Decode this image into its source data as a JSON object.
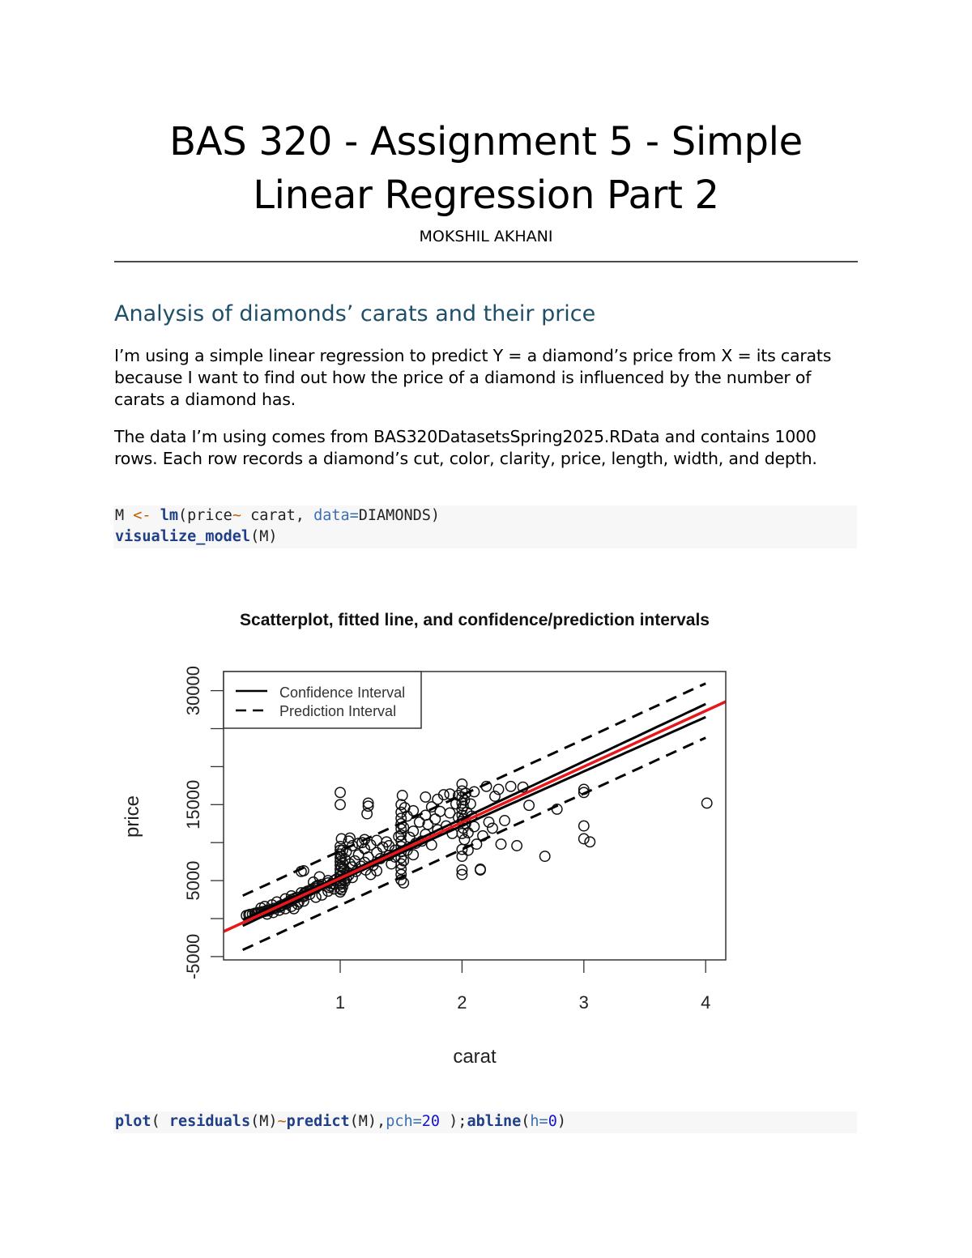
{
  "document": {
    "title": "BAS 320 - Assignment 5 - Simple Linear Regression Part 2",
    "title_line1": "BAS 320 - Assignment 5 - Simple",
    "title_line2": "Linear Regression Part 2",
    "author": "MOKSHIL AKHANI",
    "section_heading": "Analysis of diamonds’ carats and their price",
    "paragraph1": "I’m using a simple linear regression to predict Y = a diamond’s price from X = its carats because I want to find out how the price of a diamond is influenced by the number of carats a diamond has.",
    "paragraph2": "The data I’m using comes from BAS320DatasetsSpring2025.RData and contains 1000 rows. Each row records a diamond’s cut, color, clarity, price, length, width, and depth.",
    "code_block1": {
      "line1": {
        "t1": "M ",
        "t2": "<-",
        "t3": " ",
        "t4": "lm",
        "t5": "(price",
        "t6": "~",
        "t7": " carat, ",
        "t8": "data=",
        "t9": "DIAMONDS)"
      },
      "line2": {
        "t1": "visualize_model",
        "t2": "(M)"
      }
    },
    "code_block2": {
      "t1": "plot",
      "t2": "( ",
      "t3": "residuals",
      "t4": "(M)",
      "t5": "~",
      "t6": "predict",
      "t7": "(M),",
      "t8": "pch=",
      "t9": "20",
      "t10": " );",
      "t11": "abline",
      "t12": "(",
      "t13": "h=",
      "t14": "0",
      "t15": ")"
    }
  },
  "colors": {
    "heading": "#1f4e68",
    "fitted_line": "#e8171b",
    "code_bg": "#f7f7f7",
    "keyword": "#1f3f86",
    "operator": "#c05d00"
  },
  "chart_data": {
    "type": "scatter",
    "title": "Scatterplot, fitted line, and confidence/prediction intervals",
    "xlabel": "carat",
    "ylabel": "price",
    "xlim": [
      0.0,
      4.2
    ],
    "ylim": [
      -5000,
      33000
    ],
    "x_ticks": [
      1,
      2,
      3,
      4
    ],
    "y_ticks": [
      -5000,
      0,
      5000,
      10000,
      15000,
      20000,
      25000,
      30000
    ],
    "y_tick_labels": [
      "-5000",
      "",
      "5000",
      "",
      "15000",
      "",
      "",
      "30000"
    ],
    "grid": false,
    "legend": {
      "position": "top-left",
      "entries": [
        {
          "label": "Confidence Interval",
          "style": "solid"
        },
        {
          "label": "Prediction Interval",
          "style": "dashed"
        }
      ]
    },
    "fitted_line": {
      "intercept": -2020,
      "slope": 7350,
      "color": "#e8171b"
    },
    "confidence_halfwidth_at_x4": 900,
    "prediction_halfwidth": 3570,
    "series": [
      {
        "name": "observations",
        "marker": "open-circle",
        "points": [
          [
            0.23,
            400
          ],
          [
            0.25,
            500
          ],
          [
            0.26,
            550
          ],
          [
            0.28,
            600
          ],
          [
            0.3,
            650
          ],
          [
            0.3,
            700
          ],
          [
            0.31,
            720
          ],
          [
            0.32,
            780
          ],
          [
            0.33,
            800
          ],
          [
            0.35,
            850
          ],
          [
            0.36,
            900
          ],
          [
            0.38,
            950
          ],
          [
            0.4,
            1000
          ],
          [
            0.4,
            1100
          ],
          [
            0.41,
            1050
          ],
          [
            0.42,
            1150
          ],
          [
            0.43,
            1200
          ],
          [
            0.45,
            1300
          ],
          [
            0.46,
            1350
          ],
          [
            0.5,
            1500
          ],
          [
            0.5,
            1600
          ],
          [
            0.51,
            1700
          ],
          [
            0.52,
            1750
          ],
          [
            0.53,
            1800
          ],
          [
            0.55,
            1900
          ],
          [
            0.56,
            2000
          ],
          [
            0.57,
            2100
          ],
          [
            0.58,
            2200
          ],
          [
            0.6,
            2300
          ],
          [
            0.6,
            2500
          ],
          [
            0.62,
            2600
          ],
          [
            0.63,
            2700
          ],
          [
            0.65,
            2800
          ],
          [
            0.7,
            2900
          ],
          [
            0.7,
            3000
          ],
          [
            0.7,
            3200
          ],
          [
            0.71,
            3400
          ],
          [
            0.72,
            3500
          ],
          [
            0.73,
            3600
          ],
          [
            0.75,
            3700
          ],
          [
            0.76,
            3800
          ],
          [
            0.77,
            3900
          ],
          [
            0.8,
            4000
          ],
          [
            0.8,
            4200
          ],
          [
            0.81,
            4300
          ],
          [
            0.82,
            4400
          ],
          [
            0.85,
            4500
          ],
          [
            0.9,
            4700
          ],
          [
            0.9,
            5000
          ],
          [
            0.91,
            4100
          ],
          [
            0.92,
            4300
          ],
          [
            0.93,
            4600
          ],
          [
            0.95,
            5000
          ],
          [
            0.97,
            5200
          ],
          [
            0.35,
            1400
          ],
          [
            0.38,
            1600
          ],
          [
            0.44,
            1800
          ],
          [
            0.48,
            2200
          ],
          [
            0.55,
            2600
          ],
          [
            0.6,
            3000
          ],
          [
            0.62,
            1300
          ],
          [
            0.66,
            2200
          ],
          [
            0.68,
            3400
          ],
          [
            0.7,
            2300
          ],
          [
            0.75,
            3200
          ],
          [
            0.78,
            4800
          ],
          [
            0.83,
            5500
          ],
          [
            0.68,
            6200
          ],
          [
            0.7,
            6300
          ],
          [
            0.4,
            600
          ],
          [
            0.45,
            800
          ],
          [
            0.5,
            1100
          ],
          [
            0.55,
            1300
          ],
          [
            0.6,
            1600
          ],
          [
            0.65,
            1900
          ],
          [
            0.8,
            2800
          ],
          [
            0.85,
            3100
          ],
          [
            0.9,
            3600
          ],
          [
            0.95,
            3900
          ],
          [
            1.0,
            3500
          ],
          [
            1.0,
            4000
          ],
          [
            1.0,
            4500
          ],
          [
            1.0,
            5000
          ],
          [
            1.0,
            5500
          ],
          [
            1.0,
            6000
          ],
          [
            1.0,
            6500
          ],
          [
            1.0,
            7000
          ],
          [
            1.0,
            7500
          ],
          [
            1.0,
            8000
          ],
          [
            1.0,
            8500
          ],
          [
            1.0,
            9000
          ],
          [
            1.0,
            9500
          ],
          [
            1.01,
            10500
          ],
          [
            1.01,
            3800
          ],
          [
            1.01,
            4700
          ],
          [
            1.01,
            5600
          ],
          [
            1.01,
            6800
          ],
          [
            1.01,
            8200
          ],
          [
            1.02,
            4200
          ],
          [
            1.02,
            6000
          ],
          [
            1.02,
            7300
          ],
          [
            1.02,
            9000
          ],
          [
            1.03,
            5100
          ],
          [
            1.03,
            6600
          ],
          [
            1.04,
            4900
          ],
          [
            1.04,
            7800
          ],
          [
            1.05,
            5300
          ],
          [
            1.05,
            8800
          ],
          [
            1.06,
            6100
          ],
          [
            1.07,
            5700
          ],
          [
            1.07,
            10200
          ],
          [
            1.08,
            7200
          ],
          [
            1.1,
            5400
          ],
          [
            1.1,
            6800
          ],
          [
            1.1,
            9600
          ],
          [
            1.12,
            7600
          ],
          [
            1.13,
            6200
          ],
          [
            1.15,
            8400
          ],
          [
            1.15,
            9900
          ],
          [
            1.17,
            6900
          ],
          [
            1.2,
            7400
          ],
          [
            1.2,
            9200
          ],
          [
            1.2,
            10400
          ],
          [
            1.21,
            6400
          ],
          [
            1.23,
            8100
          ],
          [
            1.25,
            9700
          ],
          [
            1.27,
            7000
          ],
          [
            1.3,
            8700
          ],
          [
            1.3,
            10300
          ],
          [
            1.33,
            7900
          ],
          [
            1.35,
            9400
          ],
          [
            1.38,
            10100
          ],
          [
            1.4,
            8300
          ],
          [
            1.42,
            7200
          ],
          [
            1.45,
            9000
          ],
          [
            1.48,
            10800
          ],
          [
            1.0,
            16600
          ],
          [
            1.0,
            15000
          ],
          [
            1.23,
            15200
          ],
          [
            1.23,
            14800
          ],
          [
            1.22,
            13800
          ],
          [
            1.08,
            10600
          ],
          [
            1.18,
            10000
          ],
          [
            1.25,
            5800
          ],
          [
            1.3,
            6300
          ],
          [
            1.4,
            9600
          ],
          [
            1.45,
            8100
          ],
          [
            1.5,
            5100
          ],
          [
            1.5,
            5800
          ],
          [
            1.5,
            6500
          ],
          [
            1.5,
            7200
          ],
          [
            1.5,
            8000
          ],
          [
            1.5,
            8800
          ],
          [
            1.5,
            9500
          ],
          [
            1.5,
            10200
          ],
          [
            1.5,
            11000
          ],
          [
            1.5,
            11800
          ],
          [
            1.5,
            12500
          ],
          [
            1.5,
            13200
          ],
          [
            1.5,
            14000
          ],
          [
            1.5,
            15000
          ],
          [
            1.51,
            16200
          ],
          [
            1.52,
            4700
          ],
          [
            1.52,
            7600
          ],
          [
            1.52,
            12000
          ],
          [
            1.53,
            14600
          ],
          [
            1.55,
            9000
          ],
          [
            1.55,
            13500
          ],
          [
            1.57,
            10700
          ],
          [
            1.6,
            8400
          ],
          [
            1.6,
            11500
          ],
          [
            1.6,
            14200
          ],
          [
            1.62,
            9900
          ],
          [
            1.65,
            12700
          ],
          [
            1.67,
            10200
          ],
          [
            1.7,
            11100
          ],
          [
            1.7,
            13600
          ],
          [
            1.7,
            16000
          ],
          [
            1.72,
            12400
          ],
          [
            1.75,
            14700
          ],
          [
            1.75,
            9700
          ],
          [
            1.78,
            13100
          ],
          [
            1.8,
            11700
          ],
          [
            1.8,
            15700
          ],
          [
            1.82,
            14100
          ],
          [
            1.85,
            16300
          ],
          [
            1.87,
            12200
          ],
          [
            1.9,
            13900
          ],
          [
            1.9,
            16400
          ],
          [
            1.92,
            11200
          ],
          [
            1.95,
            15100
          ],
          [
            1.97,
            13300
          ],
          [
            1.97,
            16200
          ],
          [
            2.0,
            5800
          ],
          [
            2.0,
            6400
          ],
          [
            2.0,
            8200
          ],
          [
            2.0,
            9100
          ],
          [
            2.0,
            11200
          ],
          [
            2.0,
            12800
          ],
          [
            2.0,
            13600
          ],
          [
            2.0,
            14400
          ],
          [
            2.0,
            15200
          ],
          [
            2.0,
            16000
          ],
          [
            2.0,
            16800
          ],
          [
            2.0,
            17700
          ],
          [
            2.01,
            11900
          ],
          [
            2.01,
            13100
          ],
          [
            2.01,
            14800
          ],
          [
            2.02,
            15600
          ],
          [
            2.02,
            10400
          ],
          [
            2.03,
            12500
          ],
          [
            2.03,
            16500
          ],
          [
            2.04,
            14000
          ],
          [
            2.05,
            11300
          ],
          [
            2.05,
            9000
          ],
          [
            2.07,
            15100
          ],
          [
            2.08,
            13500
          ],
          [
            2.1,
            12100
          ],
          [
            2.1,
            16700
          ],
          [
            2.12,
            9800
          ],
          [
            2.15,
            6400
          ],
          [
            2.15,
            6500
          ],
          [
            2.17,
            10900
          ],
          [
            2.2,
            17400
          ],
          [
            2.22,
            12700
          ],
          [
            2.25,
            11900
          ],
          [
            2.27,
            16100
          ],
          [
            2.3,
            17000
          ],
          [
            2.32,
            9800
          ],
          [
            2.35,
            12900
          ],
          [
            2.4,
            17400
          ],
          [
            2.45,
            9600
          ],
          [
            2.5,
            17300
          ],
          [
            2.55,
            14900
          ],
          [
            2.68,
            8200
          ],
          [
            2.78,
            14400
          ],
          [
            3.0,
            17000
          ],
          [
            3.0,
            16600
          ],
          [
            3.0,
            12200
          ],
          [
            3.0,
            10500
          ],
          [
            3.05,
            10100
          ],
          [
            4.01,
            15200
          ]
        ]
      }
    ]
  }
}
